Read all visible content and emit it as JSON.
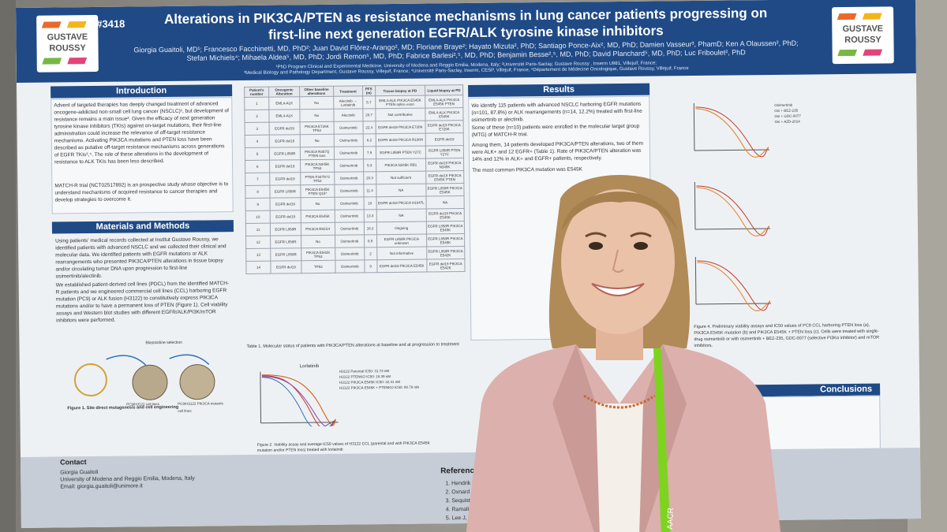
{
  "poster": {
    "id": "#3418",
    "title_line1": "Alterations in PIK3CA/PTEN as resistance mechanisms in lung cancer patients progressing on",
    "title_line2": "first-line next generation EGFR/ALK tyrosine kinase inhibitors",
    "authors_line1": "Giorgia Guaitoli, MD¹; Francesco Facchinetti, MD, PhD²; Juan David Flórez-Arango², MD; Floriane Braye²; Hayato Mizuta², PhD; Santiago Ponce-Aix², MD, PhD; Damien Vasseur³, PhamD; Ken A Olaussen², PhD;",
    "authors_line2": "Stefan Michiels⁴; Mihaela Aldea⁵, MD, PhD; Jordi Remon⁵, MD, PhD; Fabrice Barlesi²,⁵, MD, PhD; Benjamin Besse²,⁵, MD, PhD; David Planchard⁵, MD, PhD; Luc Friboulet², PhD",
    "affil_line1": "¹PhD Program Clinical and Experimental Medicine, University of Modena and Reggio Emilia, Modena, Italy; ²Université Paris-Saclay, Gustave Roussy , Inserm U981, Villejuif, France;",
    "affil_line2": "³Medical Biology and Pathology Department, Gustave Roussy, Villejuif, France; ⁴Université Paris-Saclay, Inserm, CESP, Villejuif, France; ⁵Département de Médecine Oncologique, Gustave Roussy, Villejuif, France",
    "logo_word1": "GUSTAVE",
    "logo_word2": "ROUSSY",
    "logo_colors": [
      "#e9692c",
      "#f2b51b",
      "#76b843",
      "#e5427a"
    ]
  },
  "sections": {
    "intro_heading": "Introduction",
    "intro_text": "Advent of targeted therapies has deeply changed treatment of advanced oncogene-addicted non-small cell lung cancer (NSCLC)¹, but development of resistance remains a main issue². Given the efficacy of next generation tyrosine kinase inhibitors (TKIs) against on-target mutations, their first-line administration could increase the relevance of off-target resistance mechanisms. Activating PIK3CA mutations and PTEN loss have been described as putative off-target resistance mechanisms across generations of EGFR TKIs³,⁴. The role of these alterations in the development of resistance to ALK TKIs has been less described.",
    "intro_text2": "MATCH-R trial (NCT02517892) is an prospective study whose objective is to understand mechanisms of acquired resistance to cancer therapies and develop strategies to overcome it.",
    "methods_heading": "Materials and Methods",
    "methods_text": "Using patients' medical records collected at Institut Gustave Roussy, we identified patients with advanced NSCLC and we collected their clinical and molecular data. We identified patients with EGFR mutations or ALK rearrangements who presented PIK3CA/PTEN alterations in tissue biopsy and/or circulating tumor DNA upon progression to first-line osimertinib/alectinib.",
    "methods_text2": "We established patient-derived cell lines (PDCL) from the identified MATCH-R patients and we engineered commercial cell lines (CCL) harboring EGFR mutation (PC9) or ALK fusion (H3122) to constitutively express PIK3CA mutations and/or to have a permanent loss of PTEN (Figure 1). Cell viability assays and Western blot studies with different EGFR/ALK/PI3K/mTOR inhibitors were performed.",
    "fig1_caption": "Figure 1. Site direct mutagenesis and cell engineering",
    "fig1_label_a": "Blasticidine selection",
    "fig1_label_b": "PC9/H3122 cell lines",
    "fig1_label_c": "PC9/H3122 PIK3CA mutants cell lines",
    "results_heading": "Results",
    "results_text": "We identify 115 patients with advanced NSCLC harboring EGFR mutations (n=101, 87.8%) or ALK rearrangements (n=14, 12.2%) treated with first-line osimertinib or alectinib.",
    "results_text2": "Some of these (n=10) patients were enrolled in the molecular target group (MTG) of MATCH-R trial.",
    "results_text3": "Among them, 14 patients developed PIK3CA/PTEN alterations, two of them were ALK+ and 12 EGFR+ (Table 1). Rate of PIK3CA/PTEN alteration was 14% and 12% in ALK+ and EGFR+ patients, respectively.",
    "results_text4": "The most common PIK3CA mutation was E545K",
    "table_caption": "Table 1. Molecular status of patients with PIK3CA/PTEN alterations at baseline and at progression to treatment",
    "fig2_caption": "Figure 2. Viability assay and average IC50 values of H3122 CCL (parental and with PIK3CA E545K mutation and/or PTEN loss) treated with lorlatinib",
    "fig2_title": "Lorlatinib",
    "fig4_caption": "Figure 4. Preliminary viability assays and IC50 values of PC9 CCL harboring PTEN loss (a), PIK3CA E545K mutation (b) and PIK3CA E545K + PTEN loss (c). Cells were treated with single-drug osimertinib or with osimertinib + BEZ-235, GDC-0077 (selective PI3Kα inhibitor) and mTOR inhibitors.",
    "conclusions_heading": "Conclusions",
    "contact_heading": "Contact",
    "contact_name": "Giorgia Guaitoli",
    "contact_uni": "University of Modena and Reggio Emilia, Modena, Italy",
    "contact_email": "Email: giorgia.guaitoli@unimore.it",
    "references_heading": "References",
    "references": [
      "1. Hendrik",
      "2. Oxnard",
      "3. Sequist",
      "4. Ramalin",
      "5. Lee J, Kim"
    ]
  },
  "table": {
    "headers": [
      "Patient's number",
      "Oncogenic Alteration",
      "Other baseline alterations",
      "Treatment",
      "PFS (m)",
      "Tissue biopsy at PD",
      "Liquid biopsy at PD"
    ],
    "rows": [
      [
        "1",
        "EML4-ALK",
        "No",
        "Alectinib → Lorlatinib",
        "5.7",
        "EML4-ALK PIK3CA E545K PTEN splice exon",
        "EML4-ALK PIK3CA E545K PTEN"
      ],
      [
        "2",
        "EML4-ALK",
        "No",
        "Alectinib",
        "20.7",
        "Not contributive",
        "EML4-ALK PIK3CA E545K"
      ],
      [
        "3",
        "EGFR del19",
        "PIK3CA E726K TP53",
        "Osimertinib",
        "22.4",
        "EGFR del19 PIK3CA E726K",
        "EGFR del19 PIK3CA E726K"
      ],
      [
        "4",
        "EGFR del19",
        "No",
        "Osimertinib",
        "6.2",
        "EGFR del19 PIK3CA R108H",
        "EGFR del19"
      ],
      [
        "5",
        "EGFR L858R",
        "PIK3CA R357Q PTEN loss",
        "Osimertinib",
        "7.9",
        "EGFR L858R PTEN Y27C",
        "EGFR L858R PTEN Y27C"
      ],
      [
        "6",
        "EGFR del19",
        "PIK3CA N345K TP53",
        "Osimertinib",
        "5.3",
        "PIK3CA N345K RB1",
        "EGFR del19 PIK3CA N345K"
      ],
      [
        "7",
        "EGFR del19",
        "PTEN F347fs*3 TP53",
        "Osimertinib",
        "20.3",
        "Not sufficient",
        "EGFR del19 PIK3CA E545K PTEN"
      ],
      [
        "8",
        "EGFR L858R",
        "PIK3CA E545K PTEN Q15*",
        "Osimertinib",
        "11.4",
        "NA",
        "EGFR L858R PIK3CA E545K"
      ],
      [
        "9",
        "EGFR del19",
        "No",
        "Osimertinib",
        "10",
        "EGFR del19 PIK3CA H1047L",
        "NA"
      ],
      [
        "10",
        "EGFR del19",
        "PIK3CA E545K",
        "Osimertinib",
        "13.3",
        "NA",
        "EGFR del19 PIK3CA E545K"
      ],
      [
        "11",
        "EGFR L858R",
        "PIK3CA R821H",
        "Osimertinib",
        "16.2",
        "Ongoing",
        "EGFR L858R PIK3CA E545K"
      ],
      [
        "12",
        "EGFR L858R",
        "No",
        "Osimertinib",
        "6.5",
        "EGFR L858R PIK3CA unknown",
        "EGFR L858R PIK3CA E545K"
      ],
      [
        "13",
        "EGFR L858R",
        "PIK3CA E542K TP53",
        "Osimertinib",
        "2",
        "Not informative",
        "EGFR L858R PIK3CA E542K"
      ],
      [
        "14",
        "EGFR del19",
        "TP53",
        "Osimertinib",
        "9",
        "EGFR del19 PIK3CA E545K",
        "EGFR del19 PIK3CA E542K"
      ]
    ]
  },
  "legend_fig2": [
    "H3122 Parental IC50: 31.73 nM",
    "H3122 PTENKO IC50: 18.39 nM",
    "H3122 PIK3CA E545K IC50: 32.41 nM",
    "H3122 PIK3CA E545K + PTENKO IC50: 80.79 nM"
  ],
  "legend_fig4": [
    "Osimertinib",
    "Osi + BEZ-235",
    "Osi + GDC-0077",
    "Osi + AZD-2014"
  ],
  "badge_text": "AACR"
}
